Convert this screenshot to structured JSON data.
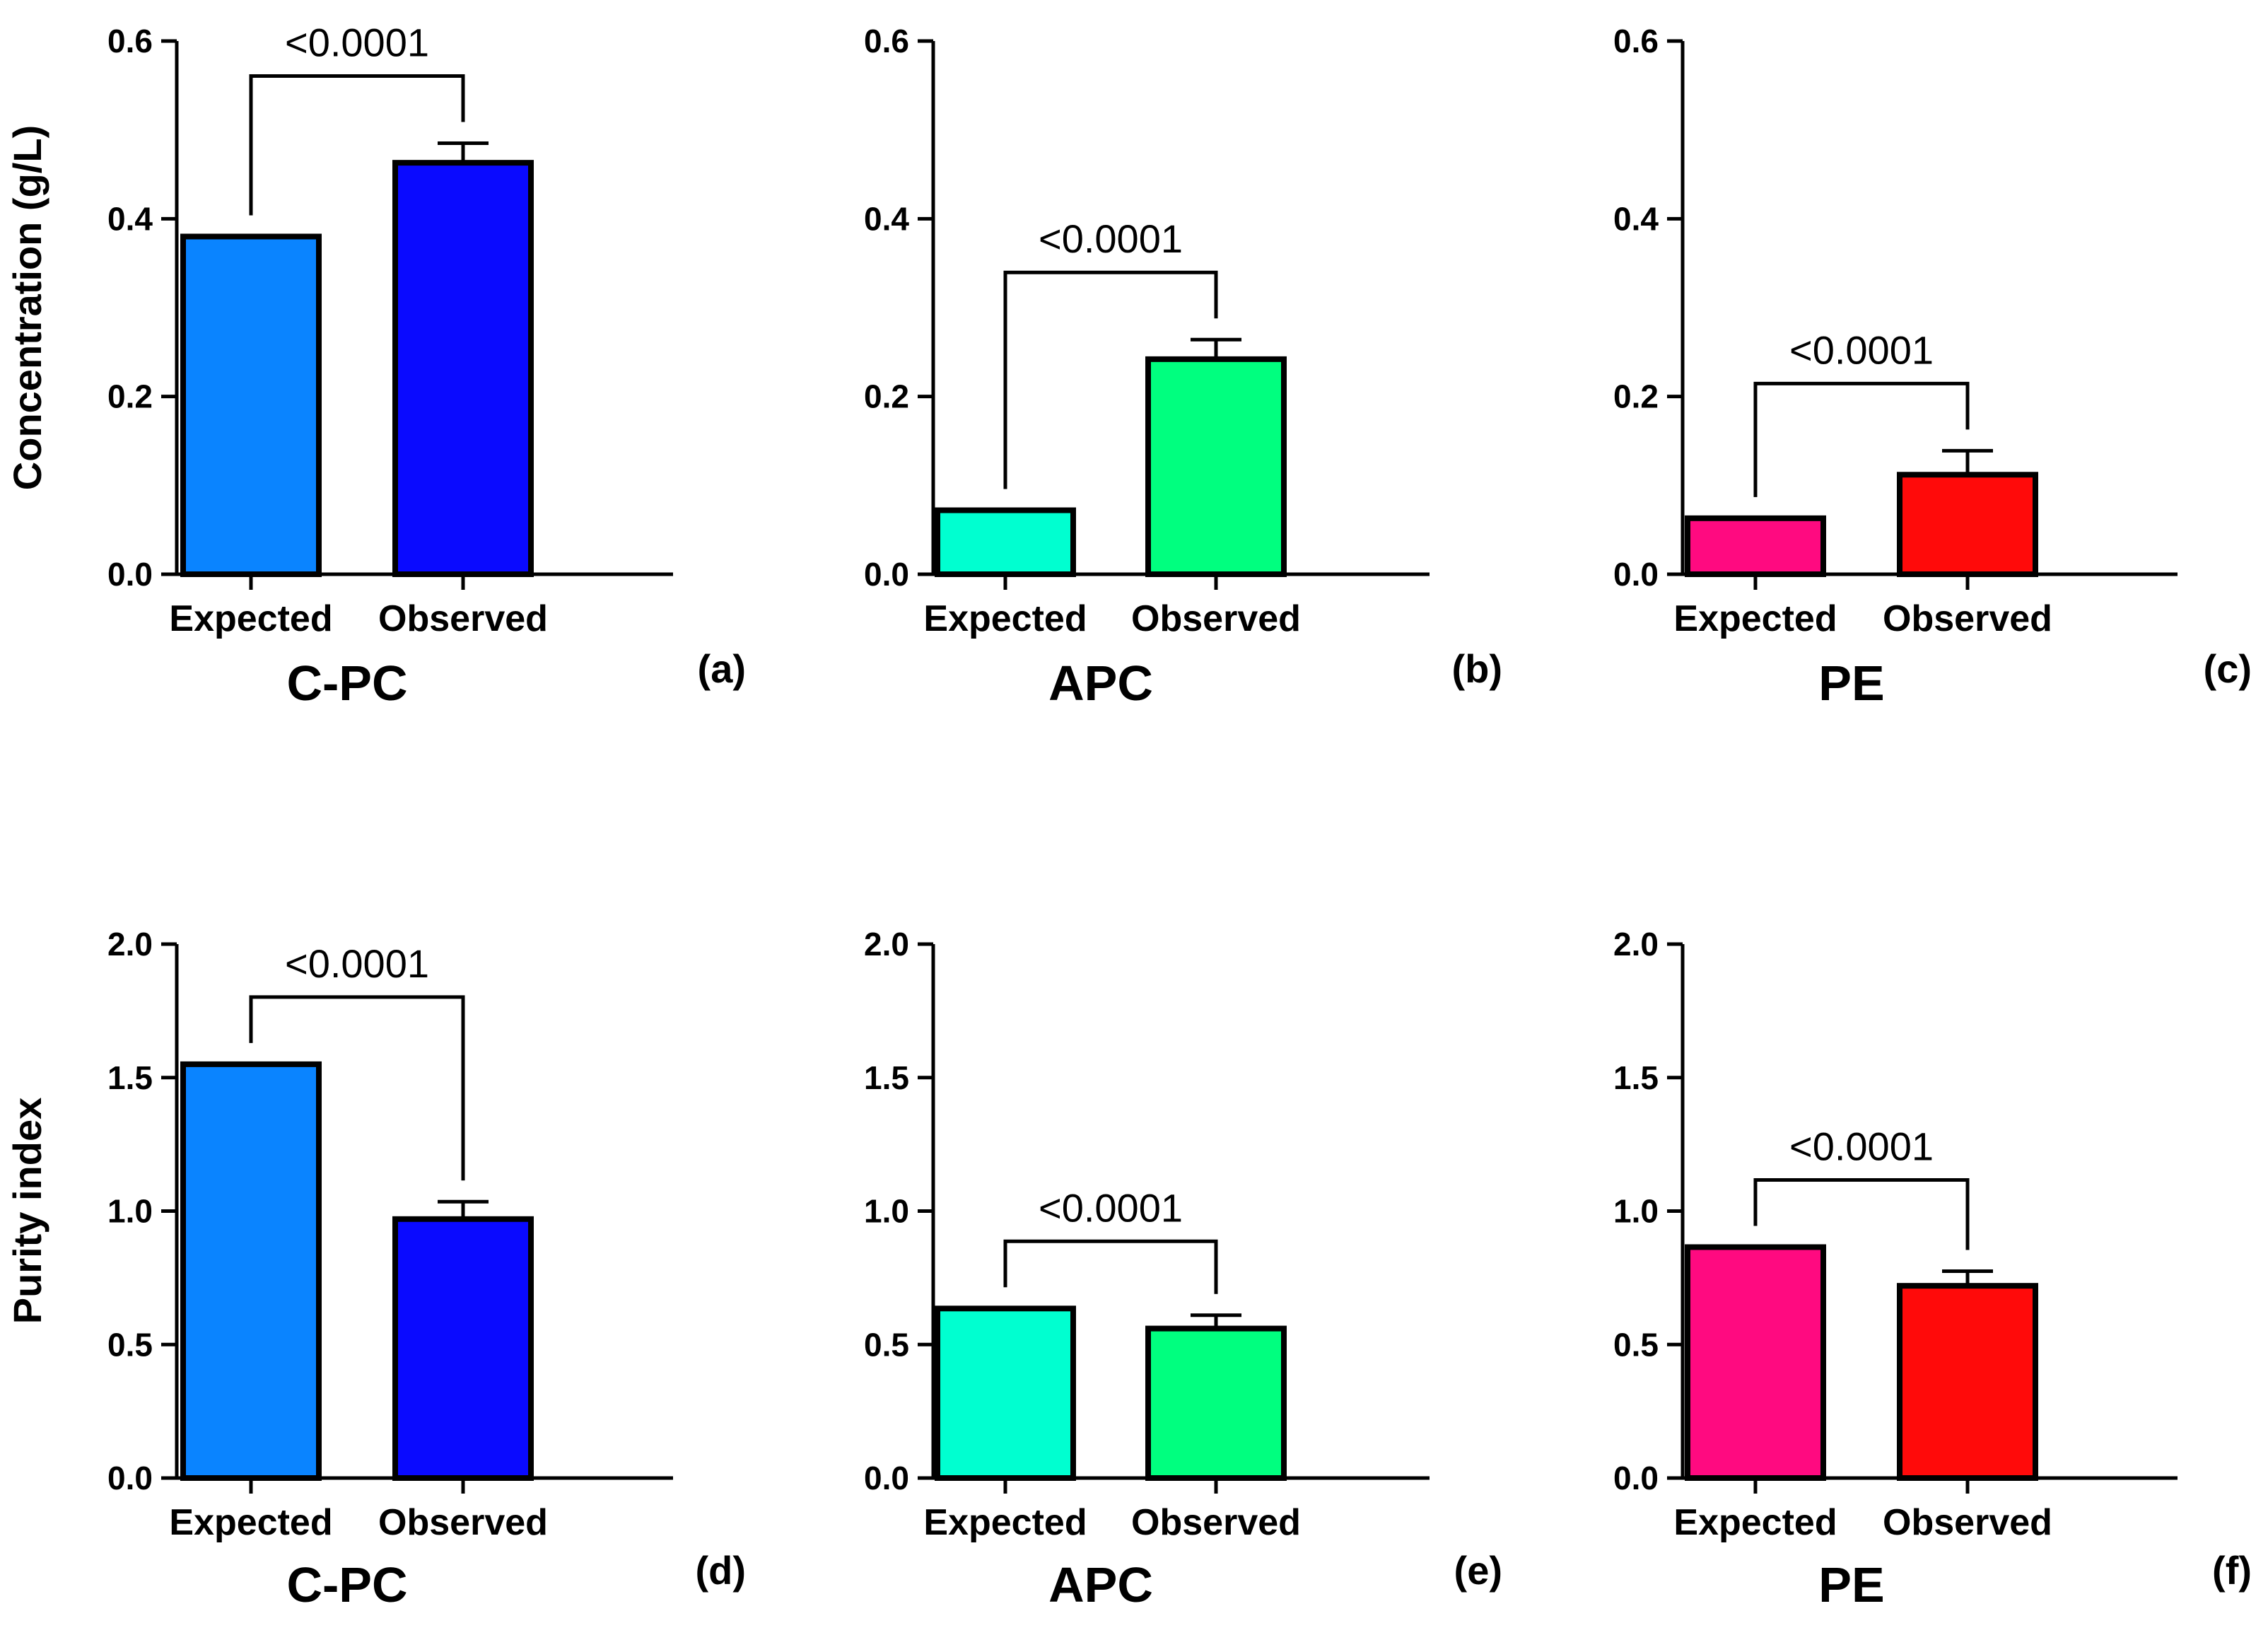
{
  "chart_data": [
    {
      "type": "bar",
      "panel_label": "(a)",
      "title": "C-PC",
      "ylabel": "Concentration (g/L)",
      "categories": [
        "Expected",
        "Observed"
      ],
      "values": [
        0.38,
        0.463
      ],
      "errors": [
        0,
        0.022
      ],
      "colors": [
        "#0a84ff",
        "#0a0aff"
      ],
      "ylim": [
        0,
        0.6
      ],
      "yticks": [
        0.0,
        0.2,
        0.4,
        0.6
      ],
      "ytick_labels": [
        "0.0",
        "0.2",
        "0.4",
        "0.6"
      ],
      "significance": "<0.0001"
    },
    {
      "type": "bar",
      "panel_label": "(b)",
      "title": "APC",
      "ylabel": "",
      "categories": [
        "Expected",
        "Observed"
      ],
      "values": [
        0.072,
        0.242
      ],
      "errors": [
        0,
        0.022
      ],
      "colors": [
        "#00ffd0",
        "#00ff7f"
      ],
      "ylim": [
        0,
        0.6
      ],
      "yticks": [
        0.0,
        0.2,
        0.4,
        0.6
      ],
      "ytick_labels": [
        "0.0",
        "0.2",
        "0.4",
        "0.6"
      ],
      "significance": "<0.0001"
    },
    {
      "type": "bar",
      "panel_label": "(c)",
      "title": "PE",
      "ylabel": "",
      "categories": [
        "Expected",
        "Observed"
      ],
      "values": [
        0.063,
        0.112
      ],
      "errors": [
        0,
        0.027
      ],
      "colors": [
        "#ff0a80",
        "#ff0a0a"
      ],
      "ylim": [
        0,
        0.6
      ],
      "yticks": [
        0.0,
        0.2,
        0.4,
        0.6
      ],
      "ytick_labels": [
        "0.0",
        "0.2",
        "0.4",
        "0.6"
      ],
      "significance": "<0.0001"
    },
    {
      "type": "bar",
      "panel_label": "(d)",
      "title": "C-PC",
      "ylabel": "Purity index",
      "categories": [
        "Expected",
        "Observed"
      ],
      "values": [
        1.55,
        0.97
      ],
      "errors": [
        0,
        0.065
      ],
      "colors": [
        "#0a84ff",
        "#0a0aff"
      ],
      "ylim": [
        0,
        2.0
      ],
      "yticks": [
        0.0,
        0.5,
        1.0,
        1.5,
        2.0
      ],
      "ytick_labels": [
        "0.0",
        "0.5",
        "1.0",
        "1.5",
        "2.0"
      ],
      "significance": "<0.0001"
    },
    {
      "type": "bar",
      "panel_label": "(e)",
      "title": "APC",
      "ylabel": "",
      "categories": [
        "Expected",
        "Observed"
      ],
      "values": [
        0.635,
        0.56
      ],
      "errors": [
        0,
        0.05
      ],
      "colors": [
        "#00ffd0",
        "#00ff7f"
      ],
      "ylim": [
        0,
        2.0
      ],
      "yticks": [
        0.0,
        0.5,
        1.0,
        1.5,
        2.0
      ],
      "ytick_labels": [
        "0.0",
        "0.5",
        "1.0",
        "1.5",
        "2.0"
      ],
      "significance": "<0.0001"
    },
    {
      "type": "bar",
      "panel_label": "(f)",
      "title": "PE",
      "ylabel": "",
      "categories": [
        "Expected",
        "Observed"
      ],
      "values": [
        0.865,
        0.72
      ],
      "errors": [
        0,
        0.055
      ],
      "colors": [
        "#ff0a80",
        "#ff0a0a"
      ],
      "ylim": [
        0,
        2.0
      ],
      "yticks": [
        0.0,
        0.5,
        1.0,
        1.5,
        2.0
      ],
      "ytick_labels": [
        "0.0",
        "0.5",
        "1.0",
        "1.5",
        "2.0"
      ],
      "significance": "<0.0001"
    }
  ]
}
